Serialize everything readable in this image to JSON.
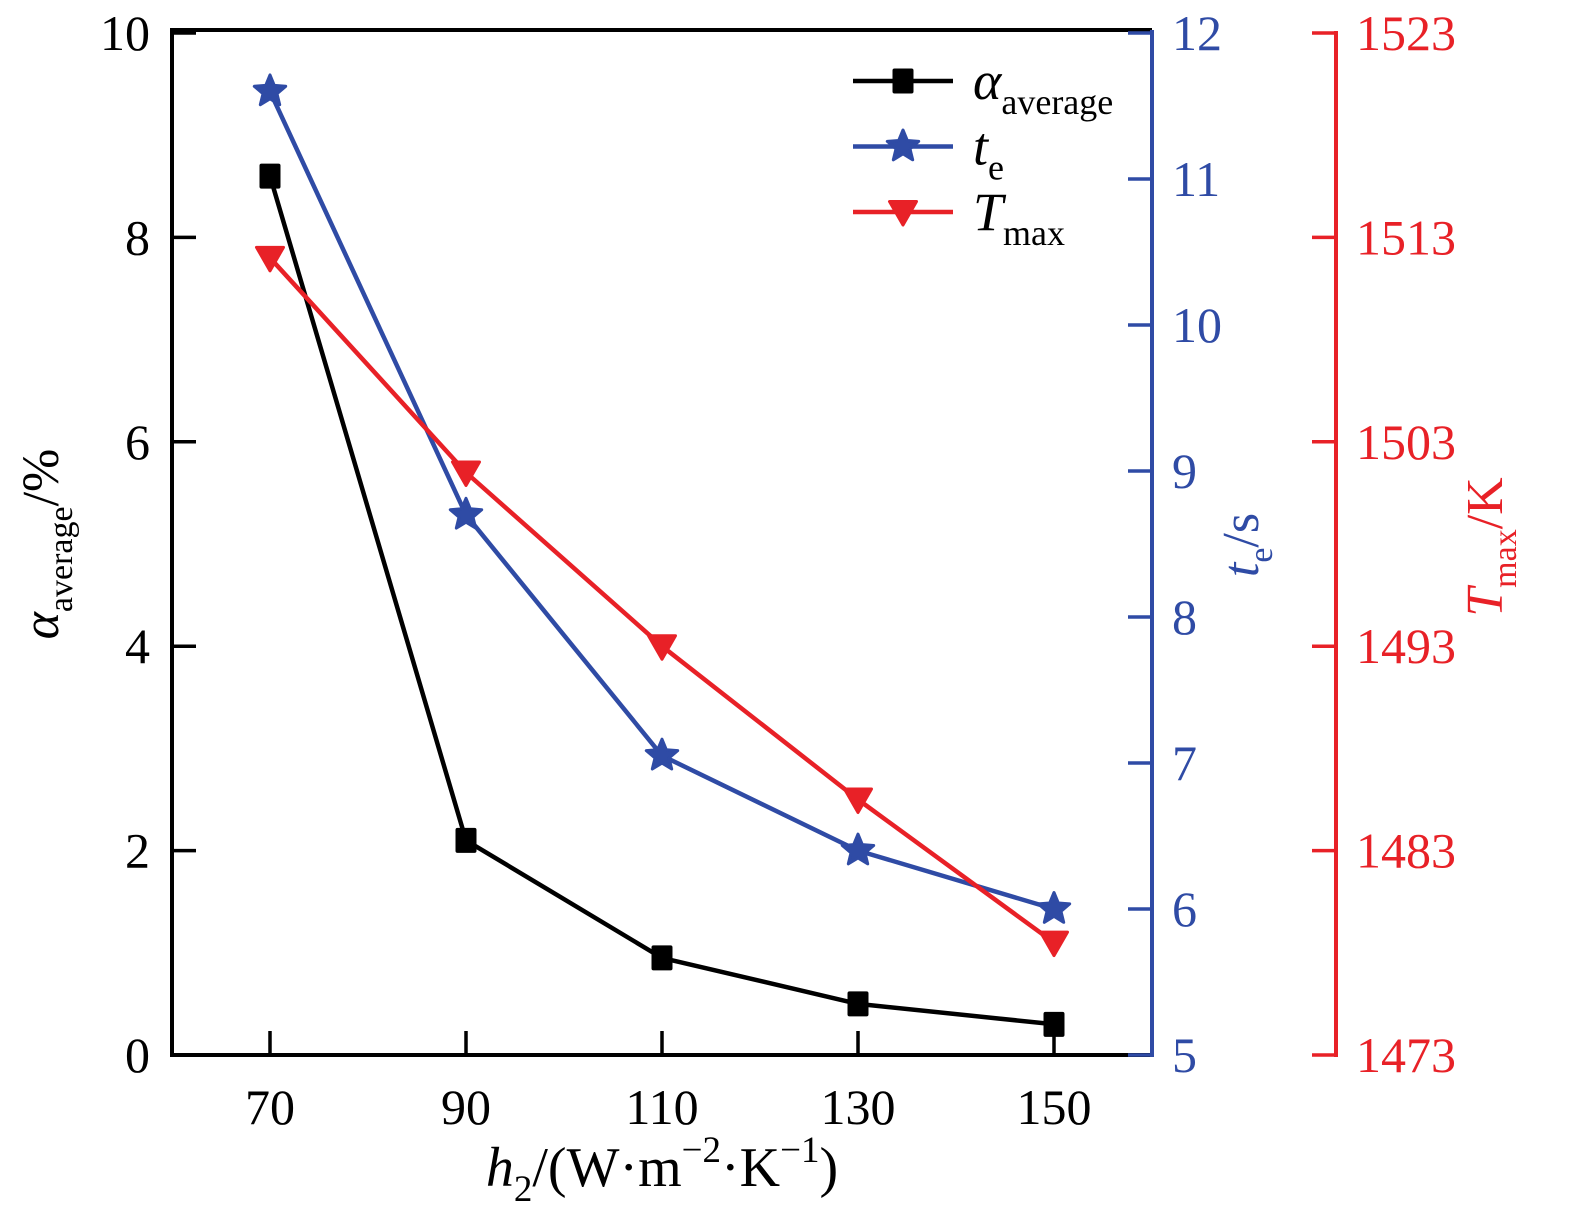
{
  "chart_data": {
    "type": "line",
    "x": [
      70,
      90,
      110,
      130,
      150
    ],
    "x_ticks": [
      70,
      90,
      110,
      130,
      150
    ],
    "xlim": [
      60,
      160
    ],
    "xlabel": "h2/(W·m−2·K−1)",
    "xlabel_parts": [
      {
        "t": "h",
        "i": true
      },
      {
        "t": "2",
        "sub": true
      },
      {
        "t": "/(W·m"
      },
      {
        "t": "−2",
        "sup": true
      },
      {
        "t": "·K"
      },
      {
        "t": "−1",
        "sup": true
      },
      {
        "t": ")"
      }
    ],
    "grid": false,
    "legend_position": "top-right-inside",
    "colors": {
      "alpha": "#000000",
      "te": "#2f4ba5",
      "tmax": "#e82127"
    },
    "axes": {
      "left": {
        "label": "αaverage/%",
        "label_parts": [
          {
            "t": "α",
            "i": true
          },
          {
            "t": "average",
            "sub": true
          },
          {
            "t": "/%"
          }
        ],
        "range": [
          0,
          10
        ],
        "ticks": [
          0,
          2,
          4,
          6,
          8,
          10
        ],
        "color": "#000000"
      },
      "te": {
        "label": "te/s",
        "label_parts": [
          {
            "t": "t",
            "i": true
          },
          {
            "t": "e",
            "sub": true
          },
          {
            "t": "/s"
          }
        ],
        "range": [
          5,
          12
        ],
        "ticks": [
          5,
          6,
          7,
          8,
          9,
          10,
          11,
          12
        ],
        "color": "#2f4ba5"
      },
      "tmax": {
        "label": "Tmax/K",
        "label_parts": [
          {
            "t": "T",
            "i": true
          },
          {
            "t": "max",
            "sub": true
          },
          {
            "t": "/K"
          }
        ],
        "range": [
          1473,
          1523
        ],
        "ticks": [
          1473,
          1483,
          1493,
          1503,
          1513,
          1523
        ],
        "color": "#e82127"
      }
    },
    "series": [
      {
        "name": "alpha_average",
        "axis": "left",
        "marker": "square",
        "color": "#000000",
        "legend_label": "αaverage",
        "legend_parts": [
          {
            "t": "α",
            "i": true
          },
          {
            "t": "average",
            "sub": true
          }
        ],
        "values": [
          8.6,
          2.1,
          0.95,
          0.5,
          0.3
        ]
      },
      {
        "name": "te",
        "axis": "te",
        "marker": "star",
        "color": "#2f4ba5",
        "legend_label": "te",
        "legend_parts": [
          {
            "t": "t",
            "i": true
          },
          {
            "t": "e",
            "sub": true
          }
        ],
        "values": [
          11.6,
          8.7,
          7.05,
          6.4,
          6.0
        ]
      },
      {
        "name": "tmax",
        "axis": "tmax",
        "marker": "triangle-down",
        "color": "#e82127",
        "legend_label": "Tmax",
        "legend_parts": [
          {
            "t": "T",
            "i": true
          },
          {
            "t": "max",
            "sub": true
          }
        ],
        "values": [
          1512,
          1501.5,
          1493,
          1485.5,
          1478.5
        ]
      }
    ]
  }
}
